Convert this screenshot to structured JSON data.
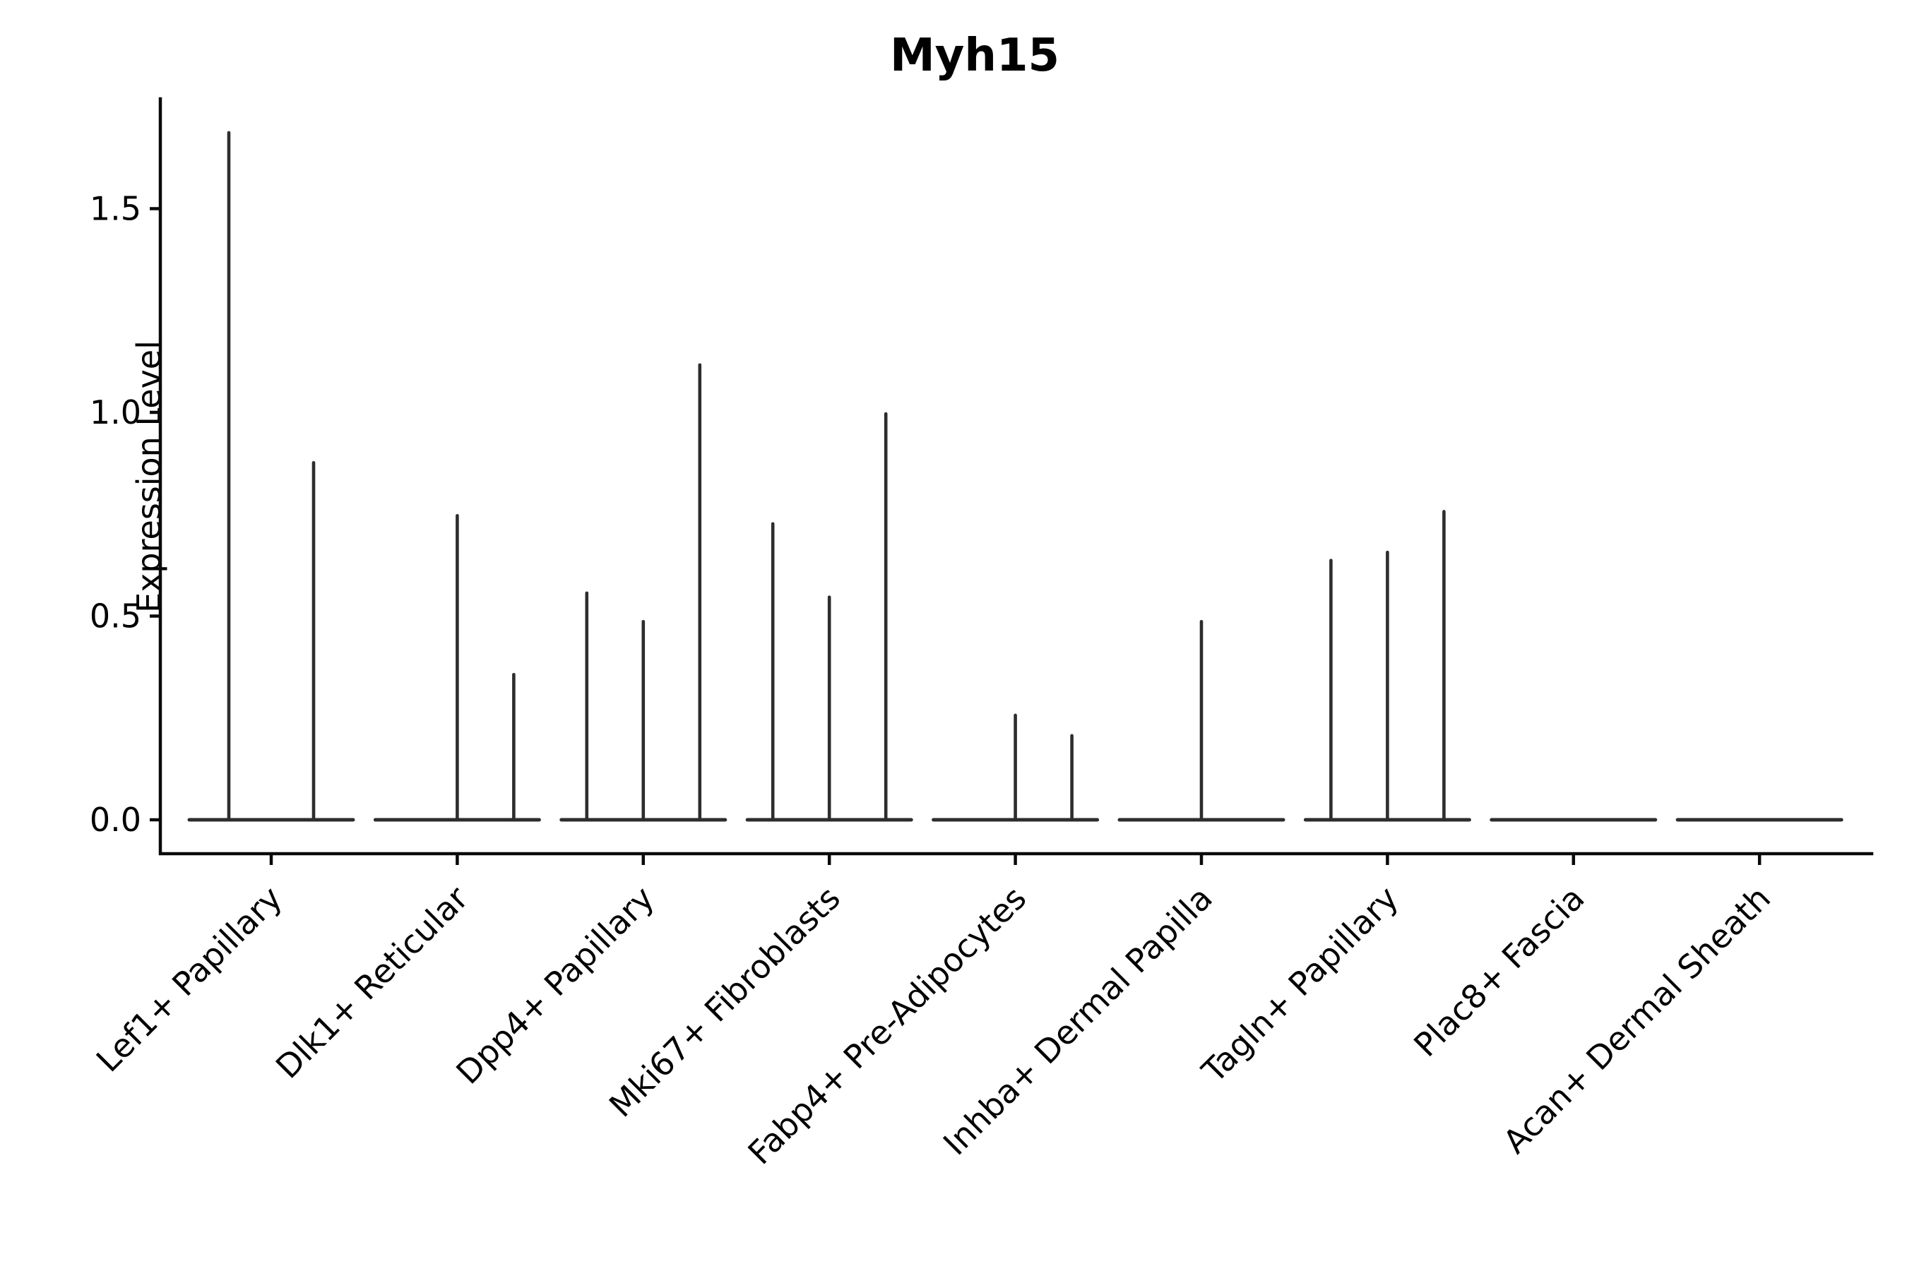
{
  "title": "Myh15",
  "ylabel": "Expression Level",
  "chart_data": {
    "type": "violin",
    "title": "Myh15",
    "xlabel": "",
    "ylabel": "Expression Level",
    "ylim": [
      -0.08,
      1.77
    ],
    "y_ticks": [
      0.0,
      0.5,
      1.0,
      1.5
    ],
    "y_tick_labels": [
      "0.0",
      "0.5",
      "1.0",
      "1.5"
    ],
    "grid": false,
    "legend_position": "none",
    "categories": [
      "Lef1+ Papillary",
      "Dlk1+ Reticular",
      "Dpp4+ Papillary",
      "Mki67+ Fibroblasts",
      "Fabp4+ Pre-Adipocytes",
      "Inhba+ Dermal Papilla",
      "Tagln+ Papillary",
      "Plac8+ Fascia",
      "Acan+ Dermal Sheath"
    ],
    "series": [
      {
        "category": "Lef1+ Papillary",
        "violin_max_expression": [
          1.69,
          0.88
        ]
      },
      {
        "category": "Dlk1+ Reticular",
        "violin_max_expression": [
          0,
          0.75,
          0.36
        ]
      },
      {
        "category": "Dpp4+ Papillary",
        "violin_max_expression": [
          0.56,
          0.49,
          1.12
        ]
      },
      {
        "category": "Mki67+ Fibroblasts",
        "violin_max_expression": [
          0.73,
          0.55,
          1.0
        ]
      },
      {
        "category": "Fabp4+ Pre-Adipocytes",
        "violin_max_expression": [
          0,
          0.26,
          0.21
        ]
      },
      {
        "category": "Inhba+ Dermal Papilla",
        "violin_max_expression": [
          0,
          0.49,
          0
        ]
      },
      {
        "category": "Tagln+ Papillary",
        "violin_max_expression": [
          0.64,
          0.66,
          0.76
        ]
      },
      {
        "category": "Plac8+ Fascia",
        "violin_max_expression": [
          0,
          0,
          0
        ]
      },
      {
        "category": "Acan+ Dermal Sheath",
        "violin_max_expression": [
          0,
          0,
          0
        ]
      }
    ],
    "colors": {
      "violin": "#2d2d2d",
      "axis": "#0a0a0a",
      "text": "#000000",
      "background": "#ffffff"
    }
  }
}
